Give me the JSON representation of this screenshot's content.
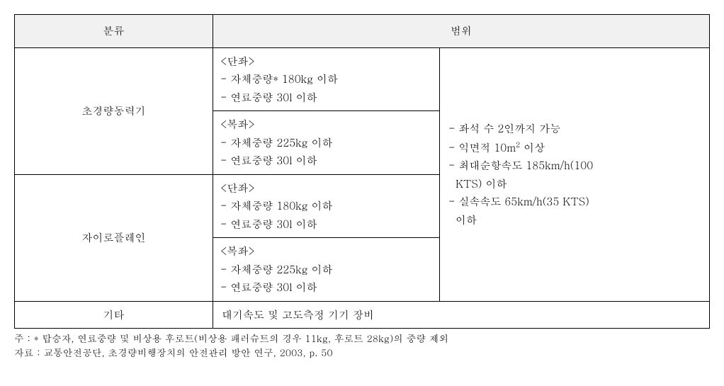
{
  "table": {
    "headers": {
      "category": "분류",
      "range": "범위"
    },
    "rows": {
      "ultralight": {
        "label": "초경량동력기",
        "single": {
          "title": "<단좌>",
          "line1": "- 자체중량* 180kg 이하",
          "line2": "- 연료중량 30l 이하"
        },
        "double": {
          "title": "<복좌>",
          "line1": "- 자체중량 225kg 이하",
          "line2": "- 연료중량 30l 이하"
        }
      },
      "gyroplane": {
        "label": "자이로플레인",
        "single": {
          "title": "<단좌>",
          "line1": "- 자체중량 180kg 이하",
          "line2": "- 연료중량 30l 이하"
        },
        "double": {
          "title": "<복좌>",
          "line1": "- 자체중량 225kg 이하",
          "line2": "- 연료중량 30l 이하"
        }
      },
      "common": {
        "line1": "- 좌석 수 2인까지 가능",
        "line2_before": "- 익면적 10m",
        "line2_sup": "2",
        "line2_after": " 이상",
        "line3a": "- 최대순항속도 185km/h(100",
        "line3b": "  KTS) 이하",
        "line4a": "- 실속속도 65km/h(35 KTS)",
        "line4b": "  이하"
      },
      "other": {
        "label": "기타",
        "value": "대기속도 및 고도측정 기기 장비"
      }
    }
  },
  "notes": {
    "line1": "주 : * 탑승자, 연료중량 및 비상용 후로트(비상용 패러슈트의 경우 11kg, 후로트 28kg)의 중량 제외",
    "line2": "자료 : 교통안전공단, 초경량비행장치의 안전관리 방안 연구, 2003, p. 50"
  }
}
